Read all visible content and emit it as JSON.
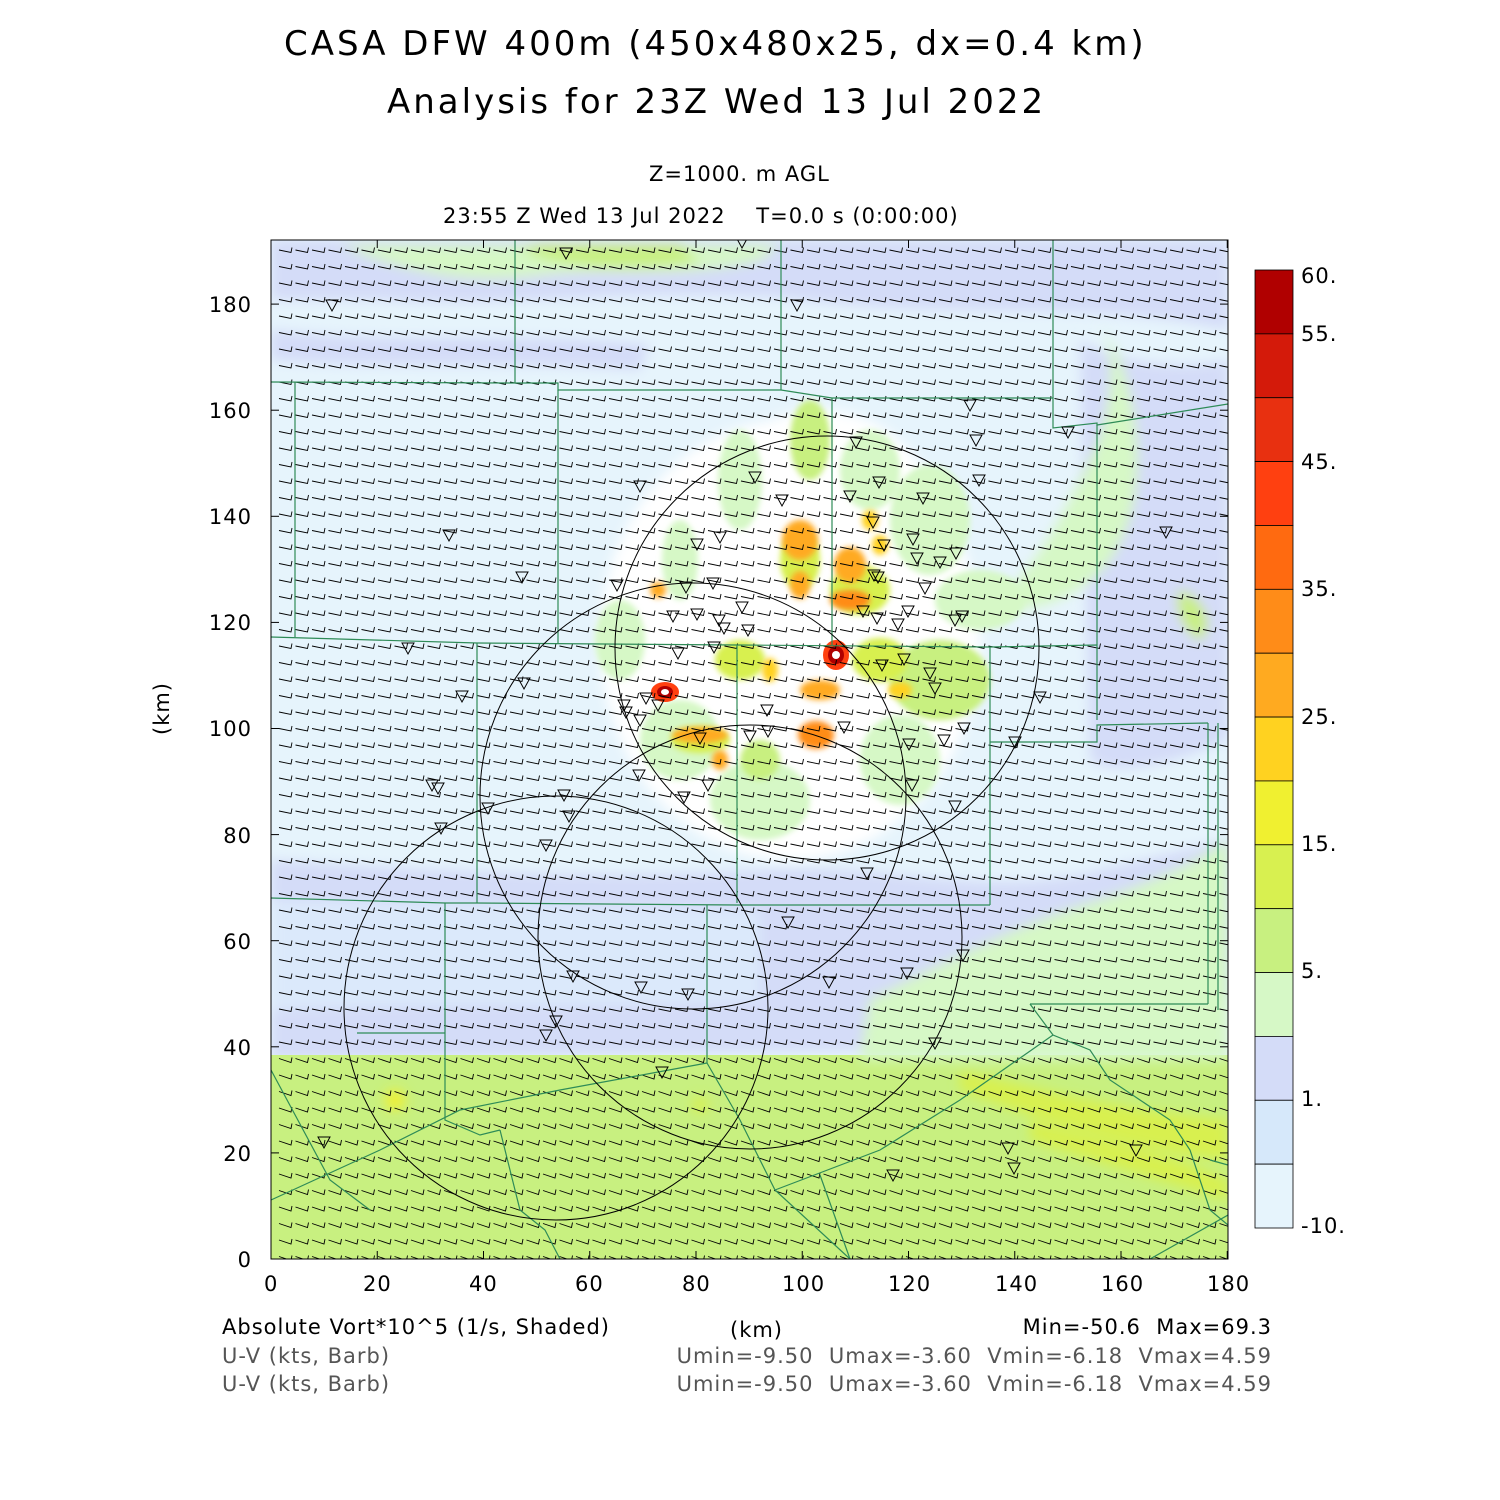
{
  "header": {
    "title_line1": "CASA DFW 400m (450x480x25, dx=0.4 km)",
    "title_line2": "Analysis for 23Z Wed 13 Jul 2022",
    "level": "Z=1000. m AGL",
    "time": "23:55 Z Wed 13 Jul 2022    T=0.0 s (0:00:00)"
  },
  "axes": {
    "x_label": "(km)",
    "y_label": "(km)",
    "x_ticks": [
      "0",
      "20",
      "40",
      "60",
      "80",
      "100",
      "120",
      "140",
      "160",
      "180"
    ],
    "y_ticks": [
      "0",
      "20",
      "40",
      "60",
      "80",
      "100",
      "120",
      "140",
      "160",
      "180"
    ]
  },
  "colorbar": {
    "labels": [
      "60.",
      "55.",
      "45.",
      "35.",
      "25.",
      "15.",
      "5.",
      "1.",
      "-10."
    ],
    "colors": [
      "#b00000",
      "#d41a0a",
      "#e83010",
      "#ff4010",
      "#ff6a10",
      "#ff8c18",
      "#ffaa20",
      "#ffd220",
      "#f0f030",
      "#d8f050",
      "#c8f080",
      "#d6f8c6",
      "#d4dcf8",
      "#d6e8fa",
      "#e6f4fc"
    ]
  },
  "footer": {
    "field": "Absolute Vort*10^5 (1/s, Shaded)",
    "xunit": "(km)",
    "minmax": "Min=-50.6  Max=69.3",
    "barb1": "U-V (kts, Barb)",
    "barb2": "U-V (kts, Barb)",
    "uv1": "Umin=-9.50  Umax=-3.60  Vmin=-6.18  Vmax=4.59",
    "uv2": "Umin=-9.50  Umax=-3.60  Vmin=-6.18  Vmax=4.59"
  },
  "colors": {
    "county_lines": "#2e8b57",
    "radar_rings": "#000000",
    "background_field": "#e6f4fc",
    "south_field": "#c8f080"
  }
}
